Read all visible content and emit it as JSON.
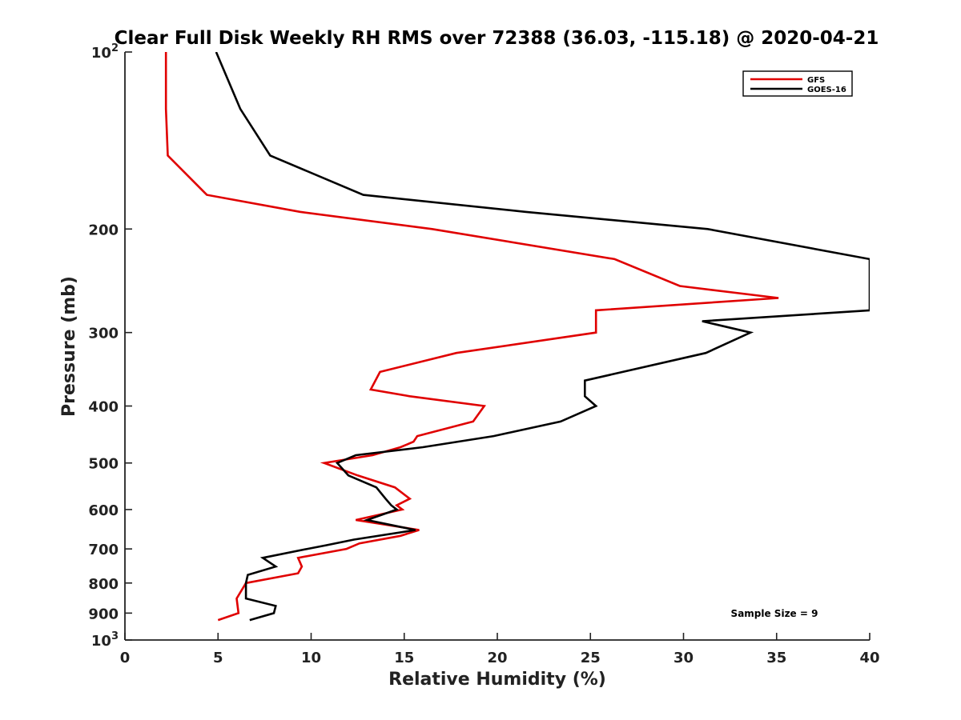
{
  "chart_data": {
    "type": "line",
    "title": "Clear Full Disk Weekly RH RMS over 72388 (36.03, -115.18) @ 2020-04-21",
    "xlabel": "Relative Humidity (%)",
    "ylabel": "Pressure (mb)",
    "xlim": [
      0,
      40
    ],
    "ylim": [
      100,
      1000
    ],
    "y_scale": "log",
    "y_reversed": true,
    "x_ticks": [
      0,
      5,
      10,
      15,
      20,
      25,
      30,
      35,
      40
    ],
    "y_ticks": [
      100,
      200,
      300,
      400,
      500,
      600,
      700,
      800,
      900,
      1000
    ],
    "y_tick_labels": {
      "100": {
        "base": "10",
        "exp": "2"
      },
      "200": "200",
      "300": "300",
      "400": "400",
      "500": "500",
      "600": "600",
      "700": "700",
      "800": "800",
      "900": "900",
      "1000": {
        "base": "10",
        "exp": "3"
      }
    },
    "legend": {
      "position": "top-right"
    },
    "annotation": "Sample Size = 9",
    "grid": false,
    "series": [
      {
        "name": "GFS",
        "color": "#e00000",
        "points": [
          [
            2.2,
            100
          ],
          [
            2.2,
            125
          ],
          [
            2.3,
            150
          ],
          [
            4.4,
            175
          ],
          [
            9.4,
            187
          ],
          [
            16.5,
            200
          ],
          [
            26.3,
            225
          ],
          [
            29.8,
            250
          ],
          [
            35.1,
            262
          ],
          [
            25.3,
            275
          ],
          [
            25.3,
            300
          ],
          [
            17.8,
            325
          ],
          [
            13.7,
            350
          ],
          [
            13.2,
            375
          ],
          [
            15.3,
            385
          ],
          [
            19.3,
            400
          ],
          [
            18.7,
            425
          ],
          [
            15.7,
            450
          ],
          [
            15.5,
            460
          ],
          [
            14.8,
            470
          ],
          [
            13.3,
            485
          ],
          [
            10.7,
            500
          ],
          [
            12.5,
            525
          ],
          [
            14.5,
            550
          ],
          [
            15.3,
            575
          ],
          [
            14.6,
            590
          ],
          [
            14.9,
            600
          ],
          [
            12.4,
            625
          ],
          [
            15.8,
            650
          ],
          [
            14.8,
            665
          ],
          [
            12.6,
            685
          ],
          [
            11.9,
            700
          ],
          [
            9.3,
            725
          ],
          [
            9.5,
            750
          ],
          [
            9.3,
            770
          ],
          [
            6.5,
            800
          ],
          [
            6.0,
            850
          ],
          [
            6.1,
            900
          ],
          [
            5.0,
            925
          ]
        ]
      },
      {
        "name": "GOES-16",
        "color": "#000000",
        "points": [
          [
            4.9,
            100
          ],
          [
            6.2,
            125
          ],
          [
            7.8,
            150
          ],
          [
            12.8,
            175
          ],
          [
            21.5,
            187
          ],
          [
            31.3,
            200
          ],
          [
            40.0,
            225
          ],
          [
            40.0,
            275
          ],
          [
            31.0,
            287
          ],
          [
            33.6,
            300
          ],
          [
            31.2,
            325
          ],
          [
            24.7,
            362
          ],
          [
            24.7,
            385
          ],
          [
            25.3,
            400
          ],
          [
            23.4,
            425
          ],
          [
            19.8,
            450
          ],
          [
            16.0,
            470
          ],
          [
            12.4,
            485
          ],
          [
            11.4,
            500
          ],
          [
            12.0,
            525
          ],
          [
            13.5,
            550
          ],
          [
            14.0,
            575
          ],
          [
            14.3,
            590
          ],
          [
            14.6,
            600
          ],
          [
            13.0,
            625
          ],
          [
            15.6,
            650
          ],
          [
            12.3,
            675
          ],
          [
            10.8,
            690
          ],
          [
            9.8,
            700
          ],
          [
            7.4,
            725
          ],
          [
            8.1,
            750
          ],
          [
            6.6,
            775
          ],
          [
            6.5,
            800
          ],
          [
            6.5,
            850
          ],
          [
            8.1,
            875
          ],
          [
            8.0,
            900
          ],
          [
            6.7,
            925
          ]
        ]
      }
    ]
  }
}
